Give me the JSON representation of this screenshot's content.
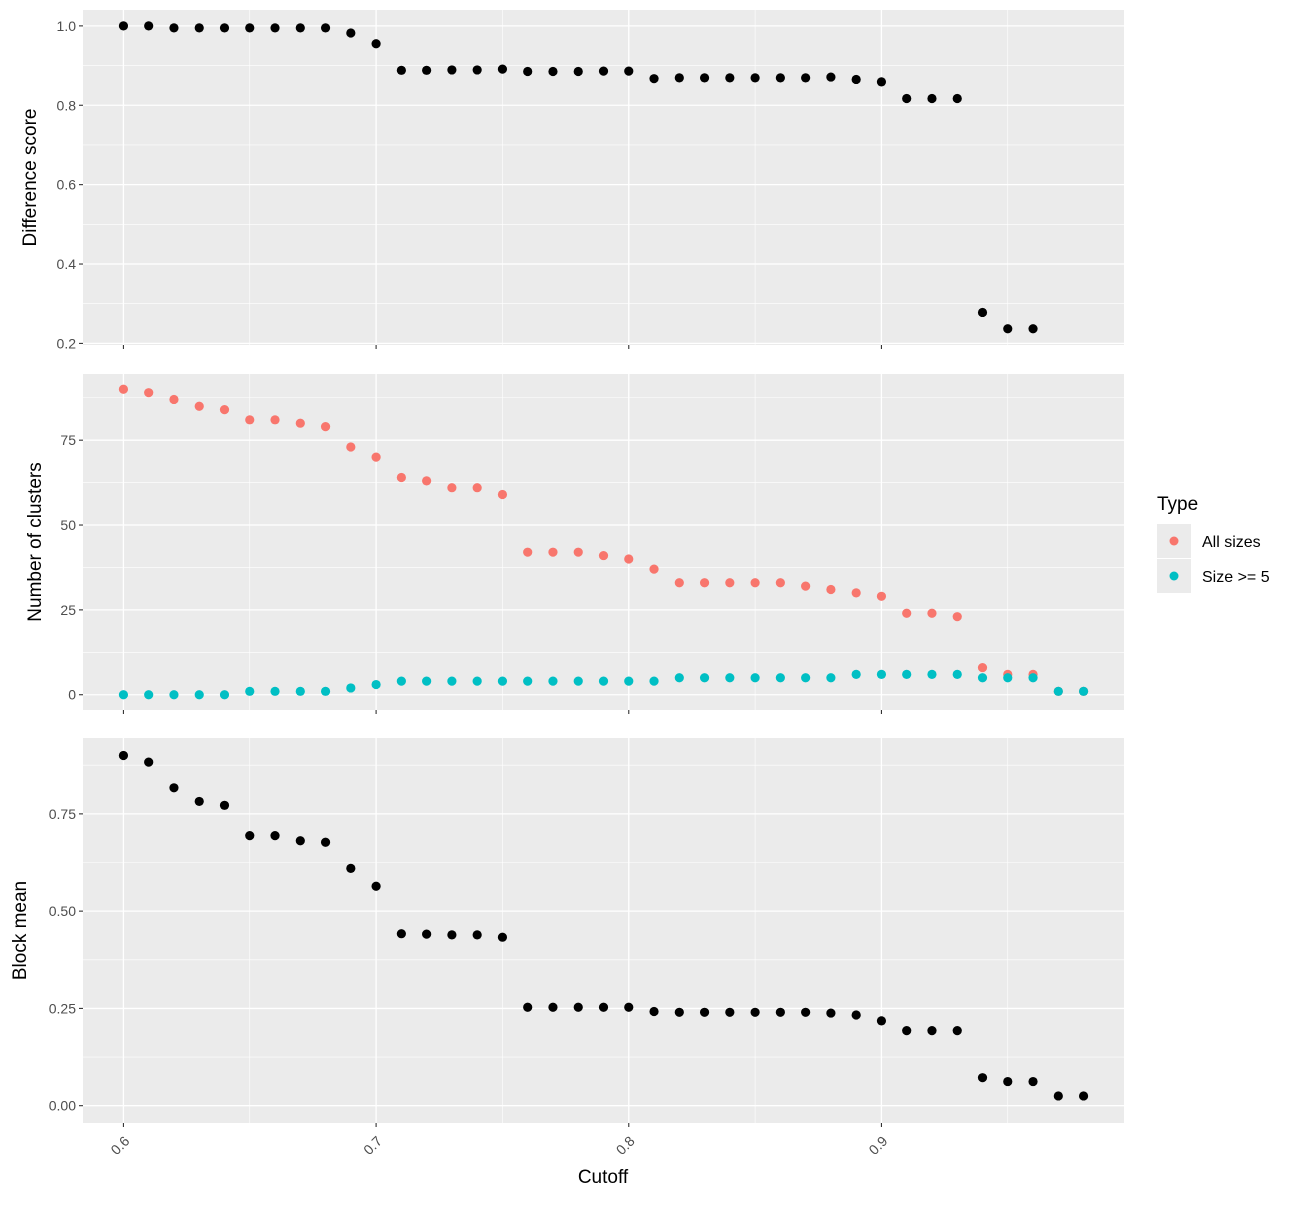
{
  "chart_data": [
    {
      "type": "scatter",
      "xlabel": "Cutoff",
      "ylabel": "Difference score",
      "xlim": [
        0.584,
        0.996
      ],
      "ylim": [
        0.196,
        1.04
      ],
      "y_ticks": [
        0.2,
        0.4,
        0.6,
        0.8,
        1.0
      ],
      "y_tick_labels": [
        "0.2",
        "0.4",
        "0.6",
        "0.8",
        "1.0"
      ],
      "x_ticks": [
        0.6,
        0.7,
        0.8,
        0.9
      ],
      "grid": true,
      "series": [
        {
          "color": "#000000",
          "x": [
            0.6,
            0.61,
            0.62,
            0.63,
            0.64,
            0.65,
            0.66,
            0.67,
            0.68,
            0.69,
            0.7,
            0.71,
            0.72,
            0.73,
            0.74,
            0.75,
            0.76,
            0.77,
            0.78,
            0.79,
            0.8,
            0.81,
            0.82,
            0.83,
            0.84,
            0.85,
            0.86,
            0.87,
            0.88,
            0.89,
            0.9,
            0.91,
            0.92,
            0.93,
            0.94,
            0.95,
            0.96
          ],
          "y": [
            1.0,
            1.0,
            0.995,
            0.995,
            0.995,
            0.995,
            0.995,
            0.995,
            0.995,
            0.982,
            0.955,
            0.888,
            0.888,
            0.889,
            0.889,
            0.891,
            0.885,
            0.885,
            0.885,
            0.886,
            0.886,
            0.867,
            0.869,
            0.869,
            0.869,
            0.869,
            0.869,
            0.869,
            0.871,
            0.865,
            0.859,
            0.817,
            0.817,
            0.817,
            0.278,
            0.237,
            0.237
          ]
        }
      ]
    },
    {
      "type": "scatter",
      "xlabel": "Cutoff",
      "ylabel": "Number of clusters",
      "xlim": [
        0.584,
        0.996
      ],
      "ylim": [
        -4.5,
        94.5
      ],
      "y_ticks": [
        0,
        25,
        50,
        75
      ],
      "y_tick_labels": [
        "0",
        "25",
        "50",
        "75"
      ],
      "x_ticks": [
        0.6,
        0.7,
        0.8,
        0.9
      ],
      "grid": true,
      "legend": {
        "title": "Type",
        "position": "right",
        "entries": [
          "All sizes",
          "Size >= 5"
        ]
      },
      "series": [
        {
          "name": "All sizes",
          "color": "#F8766D",
          "x": [
            0.6,
            0.61,
            0.62,
            0.63,
            0.64,
            0.65,
            0.66,
            0.67,
            0.68,
            0.69,
            0.7,
            0.71,
            0.72,
            0.73,
            0.74,
            0.75,
            0.76,
            0.77,
            0.78,
            0.79,
            0.8,
            0.81,
            0.82,
            0.83,
            0.84,
            0.85,
            0.86,
            0.87,
            0.88,
            0.89,
            0.9,
            0.91,
            0.92,
            0.93,
            0.94,
            0.95,
            0.96,
            0.97,
            0.98
          ],
          "y": [
            90,
            89,
            87,
            85,
            84,
            81,
            81,
            80,
            79,
            73,
            70,
            64,
            63,
            61,
            61,
            59,
            42,
            42,
            42,
            41,
            40,
            37,
            33,
            33,
            33,
            33,
            33,
            32,
            31,
            30,
            29,
            24,
            24,
            23,
            8,
            6,
            6,
            1,
            1
          ]
        },
        {
          "name": "Size >= 5",
          "color": "#00BFC4",
          "x": [
            0.6,
            0.61,
            0.62,
            0.63,
            0.64,
            0.65,
            0.66,
            0.67,
            0.68,
            0.69,
            0.7,
            0.71,
            0.72,
            0.73,
            0.74,
            0.75,
            0.76,
            0.77,
            0.78,
            0.79,
            0.8,
            0.81,
            0.82,
            0.83,
            0.84,
            0.85,
            0.86,
            0.87,
            0.88,
            0.89,
            0.9,
            0.91,
            0.92,
            0.93,
            0.94,
            0.95,
            0.96,
            0.97,
            0.98
          ],
          "y": [
            0,
            0,
            0,
            0,
            0,
            1,
            1,
            1,
            1,
            2,
            3,
            4,
            4,
            4,
            4,
            4,
            4,
            4,
            4,
            4,
            4,
            4,
            5,
            5,
            5,
            5,
            5,
            5,
            5,
            6,
            6,
            6,
            6,
            6,
            5,
            5,
            5,
            1,
            1
          ]
        }
      ]
    },
    {
      "type": "scatter",
      "xlabel": "Cutoff",
      "ylabel": "Block mean",
      "xlim": [
        0.584,
        0.996
      ],
      "ylim": [
        -0.0445,
        0.945
      ],
      "y_ticks": [
        0.0,
        0.25,
        0.5,
        0.75
      ],
      "y_tick_labels": [
        "0.00",
        "0.25",
        "0.50",
        "0.75"
      ],
      "x_ticks": [
        0.6,
        0.7,
        0.8,
        0.9
      ],
      "x_tick_labels": [
        "0.6",
        "0.7",
        "0.8",
        "0.9"
      ],
      "grid": true,
      "series": [
        {
          "color": "#000000",
          "x": [
            0.6,
            0.61,
            0.62,
            0.63,
            0.64,
            0.65,
            0.66,
            0.67,
            0.68,
            0.69,
            0.7,
            0.71,
            0.72,
            0.73,
            0.74,
            0.75,
            0.76,
            0.77,
            0.78,
            0.79,
            0.8,
            0.81,
            0.82,
            0.83,
            0.84,
            0.85,
            0.86,
            0.87,
            0.88,
            0.89,
            0.9,
            0.91,
            0.92,
            0.93,
            0.94,
            0.95,
            0.96,
            0.97,
            0.98
          ],
          "y": [
            0.9,
            0.883,
            0.817,
            0.782,
            0.772,
            0.694,
            0.694,
            0.681,
            0.677,
            0.61,
            0.564,
            0.442,
            0.441,
            0.439,
            0.439,
            0.433,
            0.253,
            0.253,
            0.253,
            0.253,
            0.253,
            0.242,
            0.24,
            0.24,
            0.24,
            0.24,
            0.24,
            0.24,
            0.238,
            0.233,
            0.218,
            0.193,
            0.193,
            0.193,
            0.072,
            0.062,
            0.062,
            0.025,
            0.025
          ]
        }
      ]
    }
  ]
}
